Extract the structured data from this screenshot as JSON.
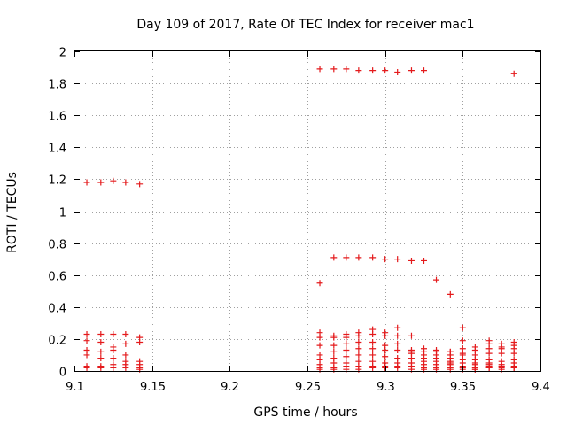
{
  "chart_data": {
    "type": "scatter",
    "title": "Day 109 of 2017, Rate Of TEC Index for receiver mac1",
    "xlabel": "GPS time / hours",
    "ylabel": "ROTI / TECUs",
    "xlim": [
      9.1,
      9.4
    ],
    "ylim": [
      0,
      2
    ],
    "xticks": [
      9.1,
      9.15,
      9.2,
      9.25,
      9.3,
      9.35,
      9.4
    ],
    "xtick_labels": [
      "9.1",
      "9.15",
      "9.2",
      "9.25",
      "9.3",
      "9.35",
      "9.4"
    ],
    "yticks": [
      0,
      0.2,
      0.4,
      0.6,
      0.8,
      1,
      1.2,
      1.4,
      1.6,
      1.8,
      2
    ],
    "ytick_labels": [
      "0",
      "0.2",
      "0.4",
      "0.6",
      "0.8",
      "1",
      "1.2",
      "1.4",
      "1.6",
      "1.8",
      "2"
    ],
    "grid": true,
    "marker": "+",
    "color": "#e41a1c",
    "series": [
      {
        "name": "mac1",
        "x": [
          9.108,
          9.117,
          9.125,
          9.133,
          9.142,
          9.258,
          9.267,
          9.275,
          9.283,
          9.292,
          9.3,
          9.308,
          9.317,
          9.325,
          9.383,
          9.258,
          9.267,
          9.275,
          9.283,
          9.292,
          9.3,
          9.308,
          9.317,
          9.325,
          9.333,
          9.342,
          9.108,
          9.117,
          9.125,
          9.133,
          9.142,
          9.108,
          9.117,
          9.125,
          9.133,
          9.142,
          9.108,
          9.117,
          9.125,
          9.133,
          9.142,
          9.108,
          9.117,
          9.125,
          9.133,
          9.142,
          9.108,
          9.117,
          9.125,
          9.133,
          9.142,
          9.108,
          9.117,
          9.125,
          9.133,
          9.142,
          9.258,
          9.267,
          9.275,
          9.283,
          9.292,
          9.3,
          9.308,
          9.317,
          9.325,
          9.333,
          9.342,
          9.35,
          9.358,
          9.367,
          9.375,
          9.383,
          9.258,
          9.267,
          9.275,
          9.283,
          9.292,
          9.3,
          9.308,
          9.317,
          9.325,
          9.333,
          9.342,
          9.35,
          9.358,
          9.367,
          9.375,
          9.383,
          9.258,
          9.267,
          9.275,
          9.283,
          9.292,
          9.3,
          9.308,
          9.317,
          9.325,
          9.333,
          9.342,
          9.35,
          9.358,
          9.367,
          9.375,
          9.383,
          9.258,
          9.267,
          9.275,
          9.283,
          9.292,
          9.3,
          9.308,
          9.317,
          9.325,
          9.333,
          9.342,
          9.35,
          9.358,
          9.367,
          9.375,
          9.383,
          9.258,
          9.267,
          9.275,
          9.283,
          9.292,
          9.3,
          9.308,
          9.317,
          9.325,
          9.333,
          9.342,
          9.35,
          9.358,
          9.367,
          9.375,
          9.383,
          9.258,
          9.267,
          9.275,
          9.283,
          9.292,
          9.3,
          9.308,
          9.317,
          9.325,
          9.333,
          9.342,
          9.35,
          9.358,
          9.367,
          9.375,
          9.383,
          9.258,
          9.267,
          9.275,
          9.283,
          9.292,
          9.3,
          9.308,
          9.317,
          9.325,
          9.333,
          9.342,
          9.35,
          9.358,
          9.367,
          9.375,
          9.383,
          9.258,
          9.267,
          9.275,
          9.283,
          9.292,
          9.3,
          9.308,
          9.317,
          9.325,
          9.333,
          9.342,
          9.35,
          9.358,
          9.367,
          9.375,
          9.383,
          9.35,
          9.358,
          9.367,
          9.375,
          9.383,
          9.35,
          9.358,
          9.367,
          9.375,
          9.35,
          9.342
        ],
        "y": [
          1.18,
          1.18,
          1.19,
          1.18,
          1.17,
          1.89,
          1.89,
          1.89,
          1.88,
          1.88,
          1.88,
          1.87,
          1.88,
          1.88,
          1.86,
          0.55,
          0.71,
          0.71,
          0.71,
          0.71,
          0.7,
          0.7,
          0.69,
          0.69,
          0.57,
          0.48,
          0.23,
          0.23,
          0.23,
          0.23,
          0.21,
          0.19,
          0.18,
          0.15,
          0.17,
          0.18,
          0.13,
          0.12,
          0.13,
          0.1,
          0.06,
          0.1,
          0.08,
          0.08,
          0.06,
          0.04,
          0.03,
          0.03,
          0.04,
          0.04,
          0.02,
          0.02,
          0.02,
          0.02,
          0.02,
          0.01,
          0.24,
          0.22,
          0.23,
          0.24,
          0.26,
          0.24,
          0.27,
          0.22,
          0.14,
          0.13,
          0.12,
          0.27,
          0.15,
          0.19,
          0.17,
          0.18,
          0.21,
          0.21,
          0.21,
          0.22,
          0.23,
          0.22,
          0.22,
          0.13,
          0.12,
          0.12,
          0.12,
          0.19,
          0.13,
          0.17,
          0.15,
          0.16,
          0.16,
          0.16,
          0.17,
          0.18,
          0.18,
          0.16,
          0.17,
          0.12,
          0.1,
          0.1,
          0.1,
          0.14,
          0.1,
          0.14,
          0.14,
          0.14,
          0.1,
          0.12,
          0.13,
          0.14,
          0.14,
          0.13,
          0.13,
          0.11,
          0.08,
          0.08,
          0.08,
          0.11,
          0.07,
          0.11,
          0.11,
          0.11,
          0.07,
          0.08,
          0.09,
          0.1,
          0.1,
          0.09,
          0.08,
          0.08,
          0.06,
          0.06,
          0.05,
          0.07,
          0.05,
          0.07,
          0.06,
          0.07,
          0.04,
          0.05,
          0.05,
          0.06,
          0.06,
          0.05,
          0.05,
          0.05,
          0.04,
          0.04,
          0.04,
          0.05,
          0.04,
          0.05,
          0.04,
          0.05,
          0.02,
          0.02,
          0.03,
          0.03,
          0.03,
          0.03,
          0.03,
          0.03,
          0.02,
          0.02,
          0.02,
          0.03,
          0.02,
          0.04,
          0.03,
          0.03,
          0.01,
          0.01,
          0.01,
          0.01,
          0.02,
          0.02,
          0.02,
          0.01,
          0.01,
          0.01,
          0.01,
          0.02,
          0.01,
          0.02,
          0.02,
          0.02,
          0.02,
          0.02,
          0.03,
          0.03,
          0.02,
          0.01,
          0.01,
          0.02,
          0.01,
          0.1,
          0.06
        ]
      }
    ]
  }
}
